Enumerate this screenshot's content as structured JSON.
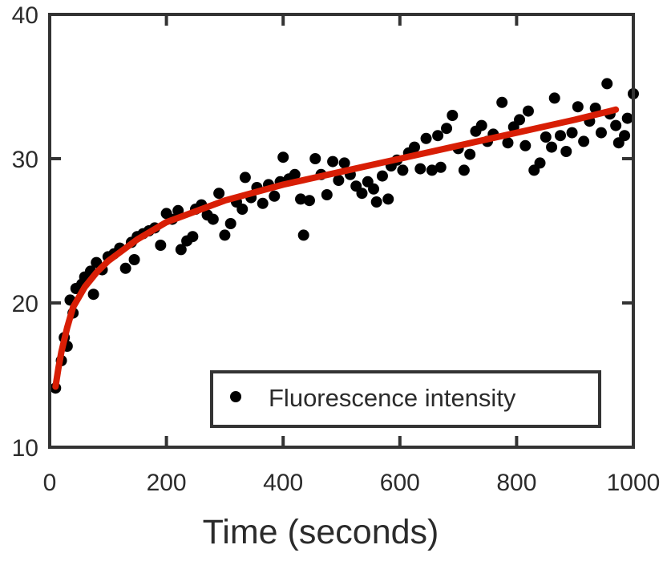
{
  "chart_data": {
    "type": "scatter",
    "title": "",
    "xlabel": "Time (seconds)",
    "ylabel": "",
    "xlim": [
      0,
      1000
    ],
    "ylim": [
      10,
      40
    ],
    "xticks": [
      0,
      200,
      400,
      600,
      800,
      1000
    ],
    "yticks": [
      10,
      20,
      30,
      40
    ],
    "grid": false,
    "legend_placement": "bottom-right",
    "colors": {
      "points": "#000000",
      "fit": "#d81e05",
      "axes": "#333333"
    },
    "series": [
      {
        "name": "Fluorescence intensity",
        "kind": "scatter",
        "points": [
          [
            10,
            14.1
          ],
          [
            20,
            16
          ],
          [
            25,
            17.6
          ],
          [
            30,
            17
          ],
          [
            35,
            20.2
          ],
          [
            40,
            19.3
          ],
          [
            45,
            21
          ],
          [
            55,
            21.3
          ],
          [
            60,
            21.8
          ],
          [
            70,
            22.2
          ],
          [
            75,
            20.6
          ],
          [
            80,
            22.8
          ],
          [
            90,
            22.3
          ],
          [
            100,
            23.2
          ],
          [
            110,
            23.4
          ],
          [
            120,
            23.8
          ],
          [
            130,
            22.4
          ],
          [
            140,
            24.2
          ],
          [
            145,
            23
          ],
          [
            150,
            24.6
          ],
          [
            160,
            24.8
          ],
          [
            170,
            25
          ],
          [
            180,
            25.2
          ],
          [
            190,
            24
          ],
          [
            200,
            26.2
          ],
          [
            210,
            25.8
          ],
          [
            220,
            26.4
          ],
          [
            225,
            23.7
          ],
          [
            235,
            24.3
          ],
          [
            245,
            24.6
          ],
          [
            250,
            26.5
          ],
          [
            260,
            26.8
          ],
          [
            270,
            26.1
          ],
          [
            280,
            25.8
          ],
          [
            290,
            27.6
          ],
          [
            300,
            24.7
          ],
          [
            310,
            25.5
          ],
          [
            320,
            27
          ],
          [
            330,
            26.5
          ],
          [
            335,
            28.7
          ],
          [
            345,
            27.3
          ],
          [
            355,
            28
          ],
          [
            365,
            26.9
          ],
          [
            375,
            28.2
          ],
          [
            385,
            27.4
          ],
          [
            395,
            28.4
          ],
          [
            400,
            30.1
          ],
          [
            410,
            28.6
          ],
          [
            420,
            28.9
          ],
          [
            430,
            27.2
          ],
          [
            435,
            24.7
          ],
          [
            445,
            27.1
          ],
          [
            455,
            30
          ],
          [
            465,
            28.9
          ],
          [
            475,
            27.5
          ],
          [
            485,
            29.8
          ],
          [
            495,
            28.5
          ],
          [
            505,
            29.7
          ],
          [
            515,
            28.9
          ],
          [
            525,
            28.1
          ],
          [
            535,
            27.6
          ],
          [
            545,
            28.4
          ],
          [
            555,
            27.9
          ],
          [
            560,
            27
          ],
          [
            570,
            28.8
          ],
          [
            580,
            27.2
          ],
          [
            585,
            29.5
          ],
          [
            595,
            29.9
          ],
          [
            605,
            29.2
          ],
          [
            615,
            30.4
          ],
          [
            625,
            30.8
          ],
          [
            635,
            29.3
          ],
          [
            645,
            31.4
          ],
          [
            655,
            29.2
          ],
          [
            665,
            31.6
          ],
          [
            670,
            29.4
          ],
          [
            680,
            32.1
          ],
          [
            690,
            33
          ],
          [
            700,
            30.7
          ],
          [
            710,
            29.2
          ],
          [
            720,
            30.3
          ],
          [
            730,
            31.9
          ],
          [
            740,
            32.3
          ],
          [
            750,
            31.2
          ],
          [
            760,
            31.7
          ],
          [
            775,
            33.9
          ],
          [
            785,
            31.1
          ],
          [
            795,
            32.2
          ],
          [
            805,
            32.7
          ],
          [
            815,
            30.9
          ],
          [
            820,
            33.3
          ],
          [
            830,
            29.2
          ],
          [
            840,
            29.7
          ],
          [
            850,
            31.5
          ],
          [
            860,
            30.8
          ],
          [
            865,
            34.2
          ],
          [
            875,
            31.6
          ],
          [
            885,
            30.5
          ],
          [
            895,
            31.8
          ],
          [
            905,
            33.6
          ],
          [
            915,
            31.2
          ],
          [
            925,
            32.6
          ],
          [
            935,
            33.5
          ],
          [
            945,
            31.8
          ],
          [
            955,
            35.2
          ],
          [
            960,
            33.1
          ],
          [
            970,
            32.3
          ],
          [
            975,
            31.1
          ],
          [
            985,
            31.6
          ],
          [
            990,
            32.8
          ],
          [
            1000,
            34.5
          ]
        ]
      },
      {
        "kind": "line",
        "points": [
          [
            10,
            14.2
          ],
          [
            15,
            15.5
          ],
          [
            20,
            16.6
          ],
          [
            30,
            18.3
          ],
          [
            40,
            19.7
          ],
          [
            60,
            21.1
          ],
          [
            80,
            22.1
          ],
          [
            100,
            22.9
          ],
          [
            150,
            24.4
          ],
          [
            200,
            25.6
          ],
          [
            300,
            27.1
          ],
          [
            400,
            28.2
          ],
          [
            500,
            29.1
          ],
          [
            600,
            30
          ],
          [
            700,
            30.9
          ],
          [
            800,
            31.8
          ],
          [
            900,
            32.7
          ],
          [
            970,
            33.4
          ]
        ]
      }
    ]
  }
}
